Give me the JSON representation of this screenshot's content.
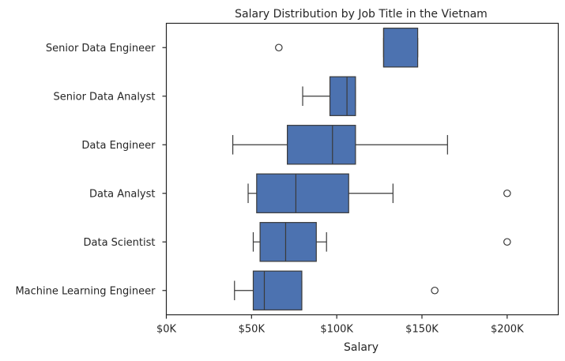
{
  "chart_data": {
    "type": "boxplot",
    "title": "Salary Distribution by Job Title in the Vietnam",
    "xlabel": "Salary",
    "ylabel": "",
    "xlim": [
      0,
      230000
    ],
    "x_ticks": [
      0,
      50000,
      100000,
      150000,
      200000
    ],
    "x_tick_labels": [
      "$0K",
      "$50K",
      "$100K",
      "$150K",
      "$200K"
    ],
    "categories": [
      "Senior Data Engineer",
      "Senior Data Analyst",
      "Data Engineer",
      "Data Analyst",
      "Data Scientist",
      "Machine Learning Engineer"
    ],
    "boxes": [
      {
        "category": "Senior Data Engineer",
        "whisker_low": 127500,
        "q1": 127500,
        "median": 127500,
        "q3": 147500,
        "whisker_high": 147500,
        "outliers": [
          66000
        ]
      },
      {
        "category": "Senior Data Analyst",
        "whisker_low": 80000,
        "q1": 96000,
        "median": 106000,
        "q3": 111000,
        "whisker_high": 111000,
        "outliers": []
      },
      {
        "category": "Data Engineer",
        "whisker_low": 39000,
        "q1": 71000,
        "median": 97500,
        "q3": 111000,
        "whisker_high": 165000,
        "outliers": []
      },
      {
        "category": "Data Analyst",
        "whisker_low": 48000,
        "q1": 53000,
        "median": 76000,
        "q3": 107000,
        "whisker_high": 133000,
        "outliers": [
          200000
        ]
      },
      {
        "category": "Data Scientist",
        "whisker_low": 51000,
        "q1": 55000,
        "median": 70000,
        "q3": 88000,
        "whisker_high": 94000,
        "outliers": [
          200000
        ]
      },
      {
        "category": "Machine Learning Engineer",
        "whisker_low": 40000,
        "q1": 51000,
        "median": 57500,
        "q3": 79500,
        "whisker_high": 79500,
        "outliers": [
          157500
        ]
      }
    ],
    "box_color": "#4c72b0",
    "line_color": "#3a3a3a",
    "grid": false,
    "legend": "none"
  }
}
